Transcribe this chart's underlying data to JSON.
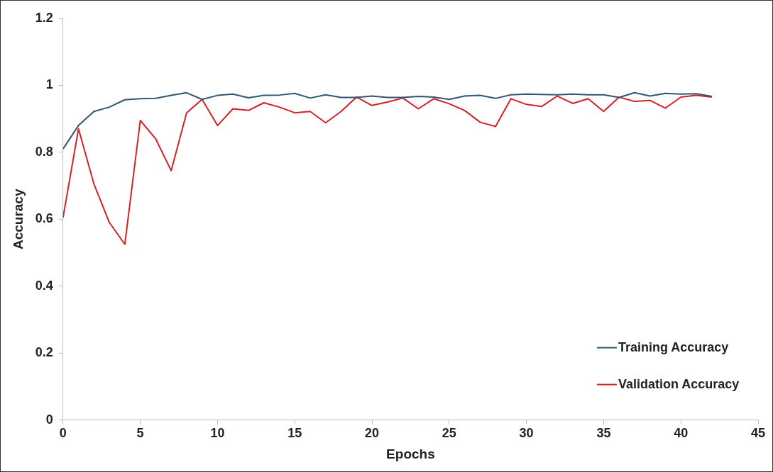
{
  "chart_data": {
    "type": "line",
    "xlabel": "Epochs",
    "ylabel": "Accuracy",
    "x": [
      0,
      1,
      2,
      3,
      4,
      5,
      6,
      7,
      8,
      9,
      10,
      11,
      12,
      13,
      14,
      15,
      16,
      17,
      18,
      19,
      20,
      21,
      22,
      23,
      24,
      25,
      26,
      27,
      28,
      29,
      30,
      31,
      32,
      33,
      34,
      35,
      36,
      37,
      38,
      39,
      40,
      41,
      42
    ],
    "series": [
      {
        "name": "Training Accuracy",
        "color": "#2f5773",
        "values": [
          0.81,
          0.88,
          0.922,
          0.935,
          0.957,
          0.96,
          0.961,
          0.97,
          0.978,
          0.958,
          0.97,
          0.974,
          0.963,
          0.97,
          0.971,
          0.976,
          0.962,
          0.972,
          0.964,
          0.964,
          0.968,
          0.964,
          0.964,
          0.967,
          0.965,
          0.958,
          0.968,
          0.97,
          0.961,
          0.972,
          0.974,
          0.973,
          0.972,
          0.974,
          0.972,
          0.972,
          0.964,
          0.978,
          0.968,
          0.976,
          0.974,
          0.975,
          0.967
        ]
      },
      {
        "name": "Validation Accuracy",
        "color": "#d42027",
        "values": [
          0.605,
          0.87,
          0.705,
          0.59,
          0.525,
          0.895,
          0.84,
          0.745,
          0.918,
          0.958,
          0.88,
          0.93,
          0.925,
          0.948,
          0.935,
          0.918,
          0.922,
          0.888,
          0.922,
          0.965,
          0.94,
          0.95,
          0.962,
          0.93,
          0.96,
          0.945,
          0.925,
          0.89,
          0.877,
          0.96,
          0.943,
          0.937,
          0.968,
          0.946,
          0.96,
          0.922,
          0.965,
          0.952,
          0.955,
          0.932,
          0.965,
          0.97,
          0.965
        ]
      }
    ],
    "xlim": [
      0,
      45
    ],
    "xticks": [
      0,
      5,
      10,
      15,
      20,
      25,
      30,
      35,
      40,
      45
    ],
    "ylim": [
      0,
      1.2
    ],
    "yticks": [
      0,
      0.2,
      0.4,
      0.6,
      0.8,
      1,
      1.2
    ],
    "grid": false,
    "legend": "bottom right",
    "marker": "none",
    "line_style": "solid"
  }
}
